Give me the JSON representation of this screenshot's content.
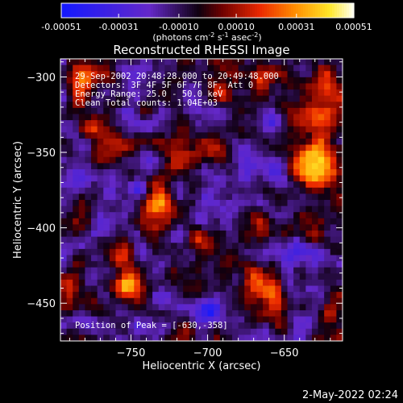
{
  "colors": {
    "background": "#000000",
    "axis": "#ffffff",
    "text": "#ffffff"
  },
  "colorbar": {
    "tick_labels": [
      "-0.00051",
      "-0.00031",
      "-0.00010",
      "0.00010",
      "0.00031",
      "0.00051"
    ],
    "tick_values": [
      -0.00051,
      -0.00031,
      -0.0001,
      0.0001,
      0.00031,
      0.00051
    ],
    "range": [
      -0.00051,
      0.00051
    ],
    "unit_label": "(photons cm",
    "unit_sup1": "-2",
    "unit_mid": " s",
    "unit_sup2": "-1",
    "unit_mid2": " asec",
    "unit_sup3": "-2",
    "unit_end": ")"
  },
  "chart_data": {
    "type": "heatmap",
    "title": "Reconstructed RHESSI Image",
    "xlabel": "Heliocentric X (arcsec)",
    "ylabel": "Heliocentric Y (arcsec)",
    "xlim": [
      -796,
      -612
    ],
    "ylim": [
      -475,
      -288
    ],
    "x_ticks": [
      -750,
      -700,
      -650
    ],
    "x_tick_labels": [
      "−750",
      "−700",
      "−650"
    ],
    "y_ticks": [
      -300,
      -350,
      -400,
      -450
    ],
    "y_tick_labels": [
      "−300",
      "−350",
      "−400",
      "−450"
    ],
    "peak": {
      "x": -630,
      "y": -358
    },
    "hotspots": [
      {
        "x": -630,
        "y": -358,
        "value": 0.00051,
        "sx": 10,
        "sy": 12
      },
      {
        "x": -628,
        "y": -325,
        "value": 0.0003,
        "sx": 8,
        "sy": 12
      },
      {
        "x": -622,
        "y": -300,
        "value": 0.00025,
        "sx": 7,
        "sy": 8
      },
      {
        "x": -733,
        "y": -383,
        "value": 0.00042,
        "sx": 8,
        "sy": 10
      },
      {
        "x": -720,
        "y": -352,
        "value": 0.00028,
        "sx": 7,
        "sy": 8
      },
      {
        "x": -700,
        "y": -345,
        "value": 0.00025,
        "sx": 9,
        "sy": 7
      },
      {
        "x": -760,
        "y": -345,
        "value": 0.00024,
        "sx": 9,
        "sy": 7
      },
      {
        "x": -782,
        "y": -300,
        "value": 0.00035,
        "sx": 7,
        "sy": 10
      },
      {
        "x": -775,
        "y": -330,
        "value": 0.00028,
        "sx": 6,
        "sy": 8
      },
      {
        "x": -690,
        "y": -308,
        "value": 0.00026,
        "sx": 6,
        "sy": 10
      },
      {
        "x": -665,
        "y": -300,
        "value": 0.00024,
        "sx": 6,
        "sy": 8
      },
      {
        "x": -650,
        "y": -300,
        "value": 0.00022,
        "sx": 5,
        "sy": 7
      },
      {
        "x": -750,
        "y": -440,
        "value": 0.00036,
        "sx": 8,
        "sy": 7
      },
      {
        "x": -755,
        "y": -418,
        "value": 0.00028,
        "sx": 6,
        "sy": 7
      },
      {
        "x": -668,
        "y": -435,
        "value": 0.00035,
        "sx": 6,
        "sy": 8
      },
      {
        "x": -655,
        "y": -445,
        "value": 0.0003,
        "sx": 6,
        "sy": 8
      },
      {
        "x": -620,
        "y": -460,
        "value": 0.00026,
        "sx": 6,
        "sy": 8
      },
      {
        "x": -700,
        "y": -412,
        "value": 0.00025,
        "sx": 9,
        "sy": 6
      },
      {
        "x": -665,
        "y": -400,
        "value": 0.00022,
        "sx": 6,
        "sy": 6
      },
      {
        "x": -790,
        "y": -445,
        "value": 0.00024,
        "sx": 5,
        "sy": 8
      },
      {
        "x": -785,
        "y": -400,
        "value": 0.0002,
        "sx": 5,
        "sy": 8
      },
      {
        "x": -635,
        "y": -400,
        "value": 0.0002,
        "sx": 6,
        "sy": 8
      },
      {
        "x": -715,
        "y": -470,
        "value": 0.00022,
        "sx": 7,
        "sy": 5
      }
    ],
    "coldspots": [
      {
        "x": -745,
        "y": -375,
        "value": -0.00028,
        "sx": 6,
        "sy": 8
      },
      {
        "x": -700,
        "y": -455,
        "value": -0.00026,
        "sx": 7,
        "sy": 6
      },
      {
        "x": -642,
        "y": -415,
        "value": -0.00022,
        "sx": 6,
        "sy": 6
      },
      {
        "x": -700,
        "y": -375,
        "value": -0.0002,
        "sx": 6,
        "sy": 6
      },
      {
        "x": -770,
        "y": -395,
        "value": -0.00018,
        "sx": 5,
        "sy": 5
      },
      {
        "x": -660,
        "y": -330,
        "value": -0.00018,
        "sx": 5,
        "sy": 6
      }
    ]
  },
  "overlay": {
    "time_range": "29-Sep-2002 20:48:28.000 to 20:49:48.000",
    "detectors": "Detectors: 3F 4F 5F 6F 7F 8F, Att 0",
    "energy_range": "Energy Range: 25.0 - 50.0 keV",
    "clean_counts": "Clean   Total counts: 1.04E+03",
    "peak_position": "Position of Peak = [-630,-358]"
  },
  "footer": {
    "date": "2-May-2022 02:24"
  }
}
